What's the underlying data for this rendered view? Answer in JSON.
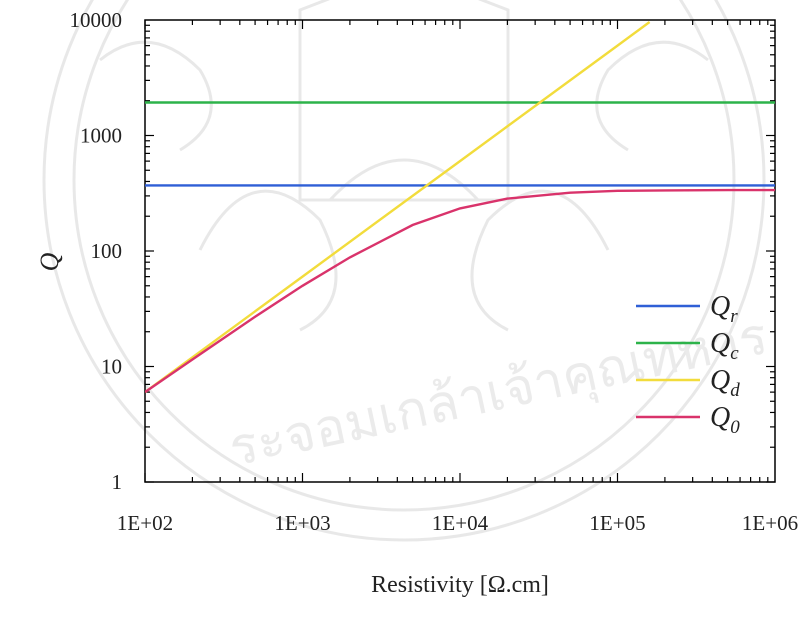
{
  "chart_data": {
    "type": "line",
    "title": "",
    "xlabel": "Resistivity [Ω.cm]",
    "ylabel": "Q",
    "x_scale": "log",
    "y_scale": "log",
    "xlim": [
      100,
      1000000
    ],
    "ylim": [
      1,
      10000
    ],
    "x_ticks": [
      "1E+02",
      "1E+03",
      "1E+04",
      "1E+05",
      "1E+06"
    ],
    "y_ticks": [
      "1",
      "10",
      "100",
      "1000",
      "10000"
    ],
    "grid": false,
    "legend_position": "right",
    "series": [
      {
        "name": "Q_r",
        "label_base": "Q",
        "label_sub": "r",
        "color": "#2f5fd6",
        "x": [
          100,
          1000000
        ],
        "y": [
          370,
          370
        ]
      },
      {
        "name": "Q_c",
        "label_base": "Q",
        "label_sub": "c",
        "color": "#2db34a",
        "x": [
          100,
          1000000
        ],
        "y": [
          1930,
          1930
        ]
      },
      {
        "name": "Q_d",
        "label_base": "Q",
        "label_sub": "d",
        "color": "#f2dc3c",
        "x": [
          100,
          1000,
          10000,
          100000,
          160000
        ],
        "y": [
          6,
          60,
          600,
          6000,
          9600
        ]
      },
      {
        "name": "Q_0",
        "label_base": "Q",
        "label_sub": "0",
        "color": "#d9336b",
        "x": [
          100,
          200,
          500,
          1000,
          2000,
          5000,
          10000,
          20000,
          50000,
          100000,
          200000,
          500000,
          1000000
        ],
        "y": [
          6,
          11.5,
          27,
          50,
          88,
          168,
          234,
          284,
          320,
          332,
          335,
          337,
          337
        ]
      }
    ]
  }
}
